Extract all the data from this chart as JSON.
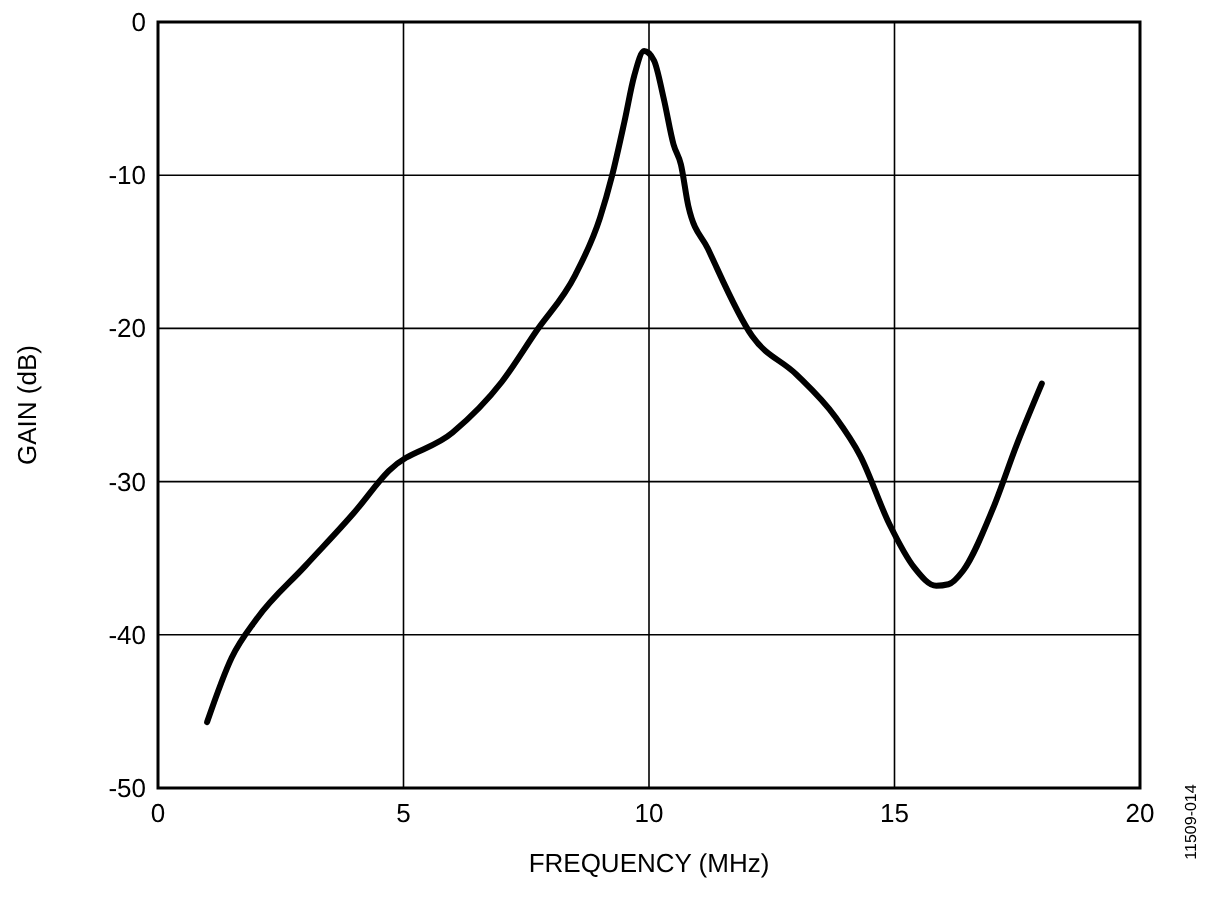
{
  "chart_data": {
    "type": "line",
    "xlabel": "FREQUENCY (MHz)",
    "ylabel": "GAIN (dB)",
    "annotations": [
      "11509-014"
    ],
    "xlim": [
      0,
      20
    ],
    "xticks": [
      0,
      5,
      10,
      15,
      20
    ],
    "ylim": [
      -50,
      0
    ],
    "yticks": [
      -50,
      -40,
      -30,
      -20,
      -10,
      0
    ],
    "grid": true,
    "marker": "none",
    "line_style": "solid",
    "series": [
      {
        "color": "#000000",
        "x": [
          1.0,
          1.5,
          2,
          3,
          4,
          4.7,
          6,
          7,
          7.7,
          8.5,
          9,
          9.25,
          9.5,
          9.7,
          9.9,
          10.1,
          10.3,
          10.5,
          10.65,
          10.8,
          11.2,
          12.1,
          13,
          13.8,
          14.3,
          14.9,
          15.4,
          15.85,
          16.1,
          16.4,
          17,
          17.5,
          18
        ],
        "values": [
          -45.7,
          -41.5,
          -39,
          -35.5,
          -32,
          -29.3,
          -26.8,
          -23.5,
          -20.2,
          -16.5,
          -12.8,
          -10,
          -6.5,
          -3.5,
          -1.9,
          -2.5,
          -5,
          -8,
          -9.3,
          -12,
          -14.8,
          -20.5,
          -23,
          -25.8,
          -28.3,
          -32.8,
          -35.6,
          -36.8,
          -36.7,
          -35.8,
          -31.8,
          -27.5,
          -23.6
        ]
      }
    ]
  }
}
